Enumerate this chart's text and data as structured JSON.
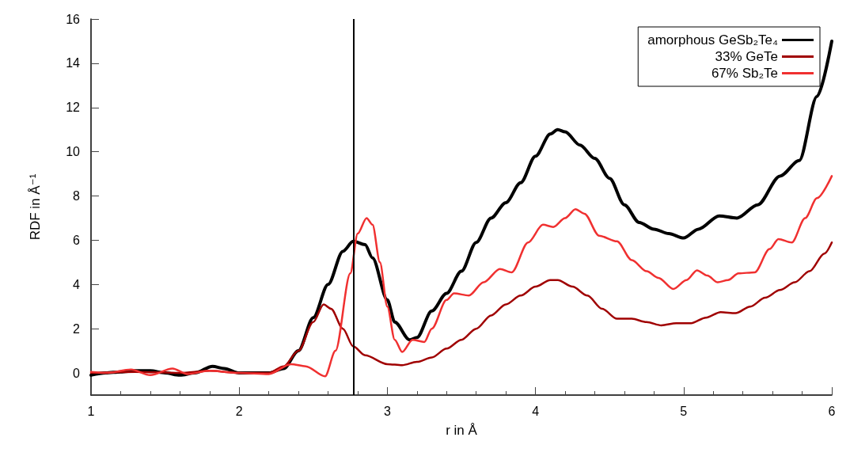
{
  "chart_data": {
    "type": "line",
    "xlabel": "r in Å",
    "ylabel": "RDF in Å⁻¹",
    "xlim": [
      1,
      6
    ],
    "xticks": [
      1,
      2,
      3,
      4,
      5,
      6
    ],
    "ylim": [
      -1,
      16
    ],
    "yticks": [
      0,
      2,
      4,
      6,
      8,
      10,
      12,
      14,
      16
    ],
    "grid": false,
    "legend": "top right",
    "marker": "none",
    "line_style": "solid",
    "ref_lines": [
      {
        "axis": "x",
        "value": 2.77,
        "color": "#000000"
      }
    ],
    "series": [
      {
        "name": "amorphous GeSb₂Te₄",
        "color": "#000000",
        "x": [
          1.0,
          1.1,
          1.2,
          1.3,
          1.4,
          1.5,
          1.6,
          1.7,
          1.82,
          1.9,
          2.0,
          2.1,
          2.2,
          2.3,
          2.4,
          2.5,
          2.6,
          2.7,
          2.77,
          2.85,
          2.9,
          3.0,
          3.05,
          3.15,
          3.2,
          3.3,
          3.4,
          3.5,
          3.6,
          3.7,
          3.8,
          3.9,
          4.0,
          4.1,
          4.15,
          4.2,
          4.3,
          4.4,
          4.5,
          4.6,
          4.7,
          4.8,
          4.9,
          5.0,
          5.1,
          5.24,
          5.36,
          5.5,
          5.65,
          5.78,
          5.9,
          6.0
        ],
        "values": [
          -0.1,
          0.0,
          0.05,
          0.1,
          0.1,
          0.0,
          -0.1,
          0.0,
          0.3,
          0.2,
          0.0,
          0.0,
          0.0,
          0.2,
          1.0,
          2.5,
          4.0,
          5.5,
          5.95,
          5.8,
          5.2,
          3.3,
          2.3,
          1.5,
          1.6,
          2.8,
          3.6,
          4.6,
          5.9,
          7.0,
          7.7,
          8.6,
          9.8,
          10.8,
          11.0,
          10.9,
          10.3,
          9.7,
          8.8,
          7.6,
          6.8,
          6.5,
          6.3,
          6.1,
          6.5,
          7.1,
          7.0,
          7.6,
          8.9,
          9.6,
          12.5,
          15.0
        ]
      },
      {
        "name": "33% GeTe",
        "color": "#a00000",
        "x": [
          1.0,
          1.3,
          1.6,
          1.8,
          2.0,
          2.2,
          2.3,
          2.4,
          2.5,
          2.57,
          2.62,
          2.7,
          2.77,
          2.85,
          3.0,
          3.1,
          3.2,
          3.3,
          3.4,
          3.5,
          3.6,
          3.7,
          3.8,
          3.9,
          4.0,
          4.1,
          4.15,
          4.25,
          4.35,
          4.45,
          4.55,
          4.65,
          4.75,
          4.85,
          4.95,
          5.05,
          5.15,
          5.25,
          5.35,
          5.45,
          5.55,
          5.65,
          5.75,
          5.85,
          5.95,
          6.0
        ],
        "values": [
          0.0,
          0.05,
          0.0,
          0.1,
          0.0,
          0.0,
          0.3,
          1.0,
          2.3,
          3.1,
          2.9,
          2.0,
          1.2,
          0.8,
          0.4,
          0.35,
          0.5,
          0.7,
          1.1,
          1.5,
          2.0,
          2.6,
          3.1,
          3.5,
          3.9,
          4.2,
          4.2,
          3.9,
          3.5,
          2.9,
          2.45,
          2.45,
          2.3,
          2.15,
          2.25,
          2.25,
          2.5,
          2.75,
          2.7,
          3.0,
          3.4,
          3.75,
          4.1,
          4.6,
          5.4,
          5.9
        ]
      },
      {
        "name": "67% Sb₂Te",
        "color": "#f03030",
        "x": [
          1.0,
          1.1,
          1.27,
          1.4,
          1.55,
          1.65,
          1.8,
          2.0,
          2.2,
          2.35,
          2.45,
          2.58,
          2.65,
          2.75,
          2.8,
          2.86,
          2.9,
          2.95,
          3.0,
          3.05,
          3.1,
          3.17,
          3.25,
          3.3,
          3.4,
          3.45,
          3.55,
          3.65,
          3.76,
          3.84,
          3.95,
          4.05,
          4.12,
          4.2,
          4.27,
          4.33,
          4.43,
          4.55,
          4.65,
          4.75,
          4.83,
          4.93,
          5.02,
          5.09,
          5.16,
          5.23,
          5.3,
          5.37,
          5.48,
          5.58,
          5.64,
          5.73,
          5.82,
          5.9,
          6.0
        ],
        "values": [
          0.05,
          0.0,
          0.15,
          -0.1,
          0.2,
          -0.05,
          0.1,
          0.0,
          -0.05,
          0.4,
          0.3,
          -0.15,
          1.0,
          4.5,
          6.3,
          7.0,
          6.7,
          5.0,
          3.0,
          1.5,
          0.95,
          1.5,
          1.4,
          2.0,
          3.3,
          3.6,
          3.5,
          4.1,
          4.7,
          4.55,
          5.9,
          6.7,
          6.6,
          7.0,
          7.4,
          7.2,
          6.2,
          5.95,
          5.1,
          4.6,
          4.3,
          3.8,
          4.2,
          4.64,
          4.4,
          4.1,
          4.2,
          4.5,
          4.55,
          5.6,
          6.05,
          5.9,
          7.0,
          7.9,
          8.9
        ]
      }
    ]
  }
}
